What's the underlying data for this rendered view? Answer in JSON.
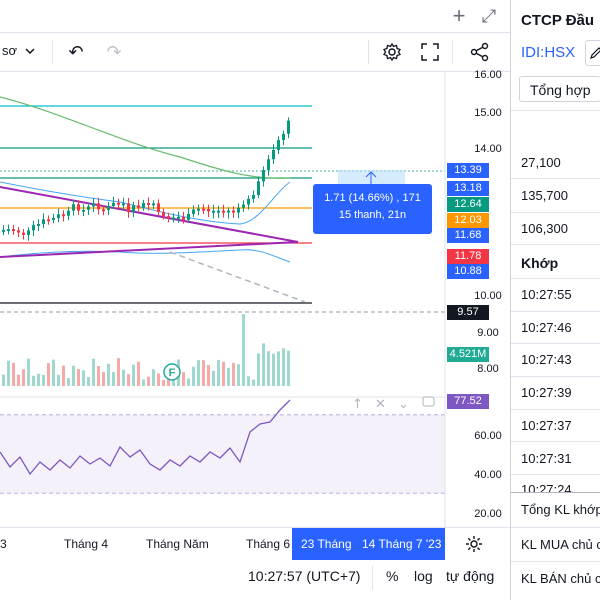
{
  "topbar": {
    "add_label": "+",
    "expand_label": "⤢"
  },
  "toolbar": {
    "indicator_label": "sơ",
    "undo_label": "↶",
    "redo_label": "↷"
  },
  "price_axis": [
    "16.00",
    "15.00",
    "14.00",
    "10.00",
    "9.00",
    "8.00",
    "60.00",
    "40.00",
    "20.00"
  ],
  "price_tags": [
    {
      "value": "13.39",
      "color": "#2962ff"
    },
    {
      "value": "13.18",
      "color": "#2962ff"
    },
    {
      "value": "12.64",
      "color": "#089981"
    },
    {
      "value": "12.03",
      "color": "#ff9800"
    },
    {
      "value": "11.68",
      "color": "#2962ff"
    },
    {
      "value": "11.78",
      "color": "#f23645"
    },
    {
      "value": "10.88",
      "color": "#2962ff"
    },
    {
      "value": "9.57",
      "color": "#131722"
    },
    {
      "value": "4.521M",
      "color": "#22ab94"
    },
    {
      "value": "77.52",
      "color": "#7e57c2"
    }
  ],
  "measure": {
    "line1": "1.71 (14.66%) , 171",
    "line2": "15 thanh, 21n"
  },
  "fund_marker": "F",
  "time_axis": {
    "labels": [
      "3",
      "Tháng 4",
      "Tháng Năm",
      "Tháng 6"
    ],
    "range_start": "23 Tháng",
    "range_end": "14 Tháng 7 '23"
  },
  "status": {
    "clock": "10:27:57 (UTC+7)",
    "percent": "%",
    "log": "log",
    "auto": "tự động"
  },
  "rpanel": {
    "title": "CTCP Đầu",
    "ticker": "IDI:HSX",
    "summary_button": "Tổng hợp",
    "values": [
      "27,100",
      "135,700",
      "106,300"
    ],
    "section": "Khớp",
    "times": [
      "10:27:55",
      "10:27:46",
      "10:27:43",
      "10:27:39",
      "10:27:37",
      "10:27:31",
      "10:27:24"
    ],
    "footer": [
      "Tổng KL khớp",
      "KL MUA chủ c",
      "KL BÁN chủ c"
    ]
  },
  "colors": {
    "accent": "#2962ff",
    "up": "#089981",
    "down": "#f23645",
    "trend": "#9c27b0",
    "rsi": "#7e57c2"
  }
}
